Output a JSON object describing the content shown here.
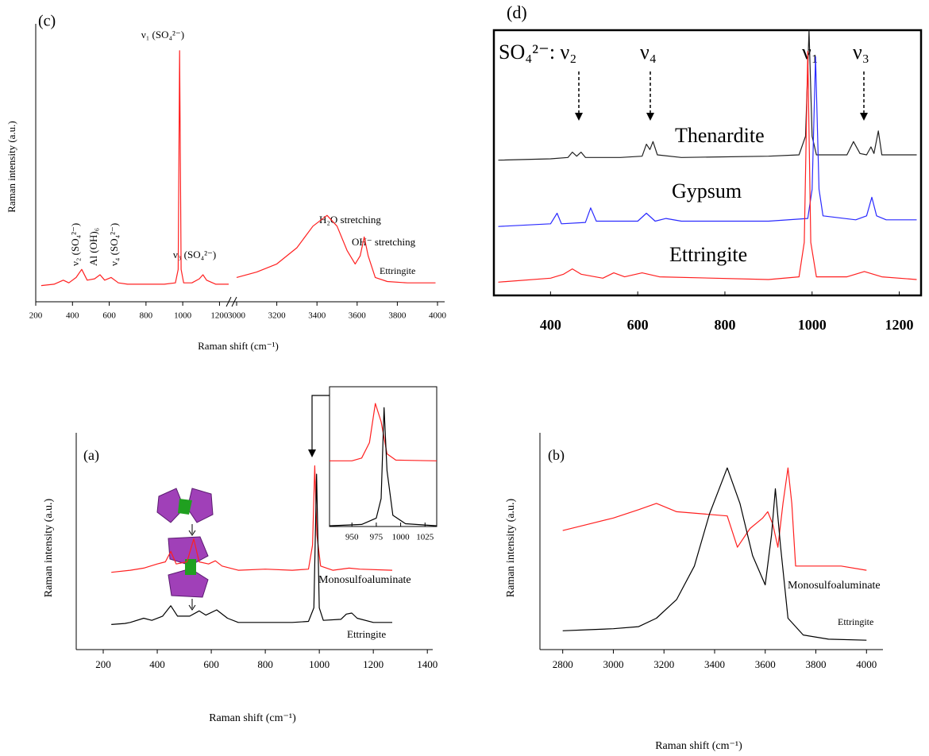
{
  "chart_data": [
    {
      "type": "line",
      "panel_label": "(c)",
      "xlabel": "Raman shift (cm⁻¹)",
      "ylabel": "Raman intensity (a.u.)",
      "xlim": [
        200,
        4000
      ],
      "xbreak": [
        1250,
        3000
      ],
      "xticks": [
        200,
        400,
        600,
        800,
        1000,
        1200,
        3000,
        3200,
        3400,
        3600,
        3800,
        4000
      ],
      "ylim": [
        0,
        100
      ],
      "annotations": [
        "ν₁ (SO₄²⁻)",
        "ν₂ (SO₄²⁻)",
        "Al (OH)₆",
        "ν₄ (SO₄²⁻)",
        "ν₃ (SO₄²⁻)",
        "H₂O stretching",
        "OH⁻ stretching"
      ],
      "series": [
        {
          "name": "Ettringite",
          "color": "#ff2020",
          "x": [
            230,
            300,
            350,
            380,
            420,
            450,
            480,
            520,
            550,
            575,
            610,
            650,
            700,
            800,
            900,
            960,
            975,
            983,
            991,
            1005,
            1050,
            1090,
            1110,
            1130,
            1180,
            1250,
            3000,
            3100,
            3200,
            3300,
            3380,
            3450,
            3500,
            3550,
            3590,
            3615,
            3635,
            3655,
            3690,
            3750,
            3850,
            3990
          ],
          "values": [
            6,
            6.5,
            8,
            7,
            9,
            12,
            8,
            8.5,
            10,
            8,
            9,
            7,
            6.5,
            6.5,
            6.5,
            7,
            12,
            93,
            12,
            7,
            7,
            8.5,
            10,
            8,
            6.5,
            6.5,
            9,
            11,
            14,
            20,
            28,
            32,
            28,
            19,
            14,
            17,
            24,
            17,
            9,
            7.5,
            7,
            7
          ]
        }
      ]
    },
    {
      "type": "line",
      "panel_label": "(d)",
      "xlim": [
        270,
        1250
      ],
      "xticks": [
        400,
        600,
        800,
        1000,
        1200
      ],
      "ylim": [
        0,
        100
      ],
      "annotations": [
        "SO₄²⁻: ν₂",
        "ν₄",
        "ν₁",
        "ν₃"
      ],
      "series": [
        {
          "name": "Thenardite",
          "color": "#202020",
          "x": [
            280,
            400,
            440,
            450,
            460,
            470,
            480,
            560,
            610,
            620,
            628,
            635,
            645,
            700,
            900,
            970,
            985,
            993,
            1000,
            1010,
            1080,
            1095,
            1110,
            1125,
            1135,
            1142,
            1152,
            1160,
            1240
          ],
          "values": [
            51,
            51.5,
            52,
            54,
            52.5,
            54,
            52,
            52,
            52.5,
            57,
            55,
            58,
            53,
            52,
            52.5,
            53,
            60,
            100,
            60,
            53,
            53,
            58,
            53.5,
            53,
            56,
            53.5,
            62,
            53,
            53
          ]
        },
        {
          "name": "Gypsum",
          "color": "#2a2aff",
          "x": [
            280,
            400,
            415,
            425,
            480,
            492,
            505,
            600,
            620,
            640,
            665,
            700,
            900,
            990,
            1000,
            1008,
            1016,
            1025,
            1100,
            1125,
            1137,
            1148,
            1170,
            1240
          ],
          "values": [
            26,
            27,
            31,
            27,
            27.5,
            33,
            28,
            28,
            31,
            28,
            29,
            28,
            28,
            29,
            40,
            90,
            40,
            30,
            28.5,
            30,
            37,
            30,
            28.5,
            28.5
          ]
        },
        {
          "name": "Ettringite",
          "color": "#ff2020",
          "x": [
            280,
            400,
            430,
            450,
            470,
            520,
            545,
            570,
            610,
            650,
            900,
            970,
            982,
            990,
            997,
            1010,
            1080,
            1120,
            1160,
            1240
          ],
          "values": [
            5,
            6.5,
            8,
            10,
            8,
            6.5,
            8.5,
            7,
            8.5,
            7,
            6,
            7,
            20,
            92,
            20,
            7,
            7,
            9,
            7,
            6
          ]
        }
      ]
    },
    {
      "type": "line",
      "panel_label": "(a)",
      "xlabel": "Raman shift (cm⁻¹)",
      "ylabel": "Raman intensity (a.u.)",
      "xlim": [
        100,
        1420
      ],
      "xticks": [
        200,
        400,
        600,
        800,
        1000,
        1200,
        1400
      ],
      "ylim": [
        0,
        100
      ],
      "series": [
        {
          "name": "Monosulfoaluminate",
          "color": "#ff2020",
          "x": [
            230,
            300,
            350,
            400,
            430,
            450,
            470,
            510,
            535,
            555,
            590,
            615,
            640,
            700,
            800,
            900,
            960,
            975,
            983,
            991,
            1005,
            1050,
            1110,
            1150,
            1270
          ],
          "values": [
            37,
            38,
            39,
            41,
            42,
            47,
            41,
            42,
            53,
            42,
            41,
            42.5,
            40,
            38,
            38.5,
            38,
            38.5,
            50,
            88,
            55,
            40,
            38,
            39,
            38.5,
            38
          ]
        },
        {
          "name": "Ettringite",
          "color": "#000000",
          "x": [
            230,
            280,
            300,
            350,
            380,
            420,
            450,
            475,
            520,
            555,
            580,
            620,
            660,
            700,
            800,
            900,
            960,
            980,
            990,
            1000,
            1015,
            1080,
            1100,
            1120,
            1140,
            1200,
            1270
          ],
          "values": [
            12,
            12.5,
            13,
            15,
            14,
            16,
            21,
            16,
            16,
            18.5,
            16.5,
            19,
            15,
            13,
            13,
            13,
            13.5,
            20,
            84,
            20,
            14,
            14.5,
            17,
            17.5,
            15,
            13,
            13
          ]
        }
      ]
    },
    {
      "type": "line",
      "xlim": [
        927,
        1037
      ],
      "xticks": [
        950,
        975,
        1000,
        1025
      ],
      "ylim": [
        0,
        100
      ],
      "series": [
        {
          "color": "#ff2020",
          "x": [
            927,
            950,
            960,
            968,
            974,
            980,
            986,
            995,
            1037
          ],
          "values": [
            47,
            47,
            49,
            60,
            88,
            75,
            52,
            47.5,
            47
          ]
        },
        {
          "color": "#000000",
          "x": [
            927,
            960,
            975,
            980,
            983,
            986,
            992,
            1005,
            1037
          ],
          "values": [
            0.5,
            1.5,
            6,
            20,
            85,
            40,
            8,
            2,
            0.5
          ]
        }
      ]
    },
    {
      "type": "line",
      "panel_label": "(b)",
      "xlabel": "Raman shift (cm⁻¹)",
      "ylabel": "Raman intensity (a.u.)",
      "xlim": [
        2710,
        4065
      ],
      "xticks": [
        2800,
        3000,
        3200,
        3400,
        3600,
        3800,
        4000
      ],
      "ylim": [
        0,
        100
      ],
      "series": [
        {
          "name": "Monosulfoaluminate",
          "color": "#ff2020",
          "x": [
            2800,
            2900,
            3000,
            3100,
            3170,
            3250,
            3350,
            3450,
            3490,
            3540,
            3590,
            3610,
            3630,
            3650,
            3670,
            3690,
            3705,
            3720,
            3800,
            3900,
            4000
          ],
          "values": [
            57,
            60,
            63,
            67,
            70,
            66,
            65,
            64,
            49,
            58,
            63,
            66,
            60,
            49,
            70,
            87,
            70,
            40,
            40,
            40,
            38
          ]
        },
        {
          "name": "Ettringite",
          "color": "#000000",
          "x": [
            2800,
            2900,
            3000,
            3100,
            3170,
            3250,
            3320,
            3380,
            3450,
            3500,
            3550,
            3600,
            3625,
            3640,
            3660,
            3690,
            3750,
            3850,
            4000
          ],
          "values": [
            9,
            9.5,
            10,
            11,
            15,
            24,
            40,
            65,
            87,
            70,
            45,
            31,
            55,
            77,
            50,
            15,
            7,
            5,
            4.5
          ]
        }
      ]
    }
  ]
}
